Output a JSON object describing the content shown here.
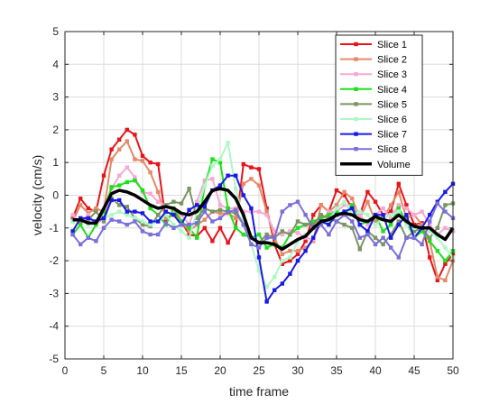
{
  "chart_data": {
    "type": "line",
    "xlabel": "time frame",
    "ylabel": "velocity (cm/s)",
    "xlim": [
      0,
      50
    ],
    "ylim": [
      -5,
      5
    ],
    "xticks": [
      0,
      5,
      10,
      15,
      20,
      25,
      30,
      35,
      40,
      45,
      50
    ],
    "yticks": [
      -5,
      -4,
      -3,
      -2,
      -1,
      0,
      1,
      2,
      3,
      4,
      5
    ],
    "grid": true,
    "legend_position": "top-right",
    "x": [
      1,
      2,
      3,
      4,
      5,
      6,
      7,
      8,
      9,
      10,
      11,
      12,
      13,
      14,
      15,
      16,
      17,
      18,
      19,
      20,
      21,
      22,
      23,
      24,
      25,
      26,
      27,
      28,
      29,
      30,
      31,
      32,
      33,
      34,
      35,
      36,
      37,
      38,
      39,
      40,
      41,
      42,
      43,
      44,
      45,
      46,
      47,
      48,
      49,
      50
    ],
    "series": [
      {
        "name": "Slice 1",
        "color": "#e8141b",
        "marker": "square",
        "line_width": 2,
        "values": [
          -0.7,
          -0.1,
          -0.4,
          -0.5,
          0.6,
          1.4,
          1.7,
          2.0,
          1.85,
          1.2,
          1.0,
          0.95,
          -0.8,
          -0.5,
          -0.8,
          -1.2,
          -1.25,
          -1.0,
          -1.4,
          -1.0,
          -1.45,
          -1.0,
          0.95,
          0.85,
          0.8,
          -0.4,
          -1.5,
          -2.1,
          -2.0,
          -1.8,
          -1.4,
          -0.6,
          -0.3,
          -0.5,
          0.15,
          0.0,
          -0.4,
          -0.6,
          0.1,
          -0.2,
          -0.6,
          -0.5,
          0.35,
          -0.3,
          -0.9,
          -0.85,
          -1.9,
          -2.6,
          -2.1,
          -1.8
        ]
      },
      {
        "name": "Slice 2",
        "color": "#e38a6a",
        "marker": "square",
        "line_width": 2,
        "values": [
          -0.8,
          -0.3,
          -0.55,
          -0.4,
          -0.5,
          1.1,
          1.4,
          1.65,
          1.1,
          1.05,
          0.7,
          0.1,
          -0.7,
          -0.6,
          -0.8,
          -1.1,
          -0.9,
          -0.75,
          -0.5,
          -0.55,
          -0.55,
          -0.7,
          0.35,
          0.5,
          0.3,
          -0.5,
          -1.3,
          -1.8,
          -1.7,
          -1.7,
          -1.6,
          -1.4,
          -0.3,
          -0.5,
          -0.3,
          0.1,
          -0.1,
          -0.7,
          -0.2,
          -0.8,
          -0.7,
          -0.3,
          0.1,
          -0.7,
          -0.6,
          -0.9,
          -1.4,
          -2.5,
          -2.6,
          -2.0
        ]
      },
      {
        "name": "Slice 3",
        "color": "#f7a8d4",
        "marker": "square",
        "line_width": 2,
        "values": [
          -0.6,
          -0.85,
          -0.6,
          -0.9,
          -0.7,
          0.2,
          0.6,
          0.85,
          0.55,
          0.1,
          0.05,
          -0.2,
          -0.3,
          -0.5,
          -0.6,
          -0.9,
          -0.2,
          0.45,
          0.5,
          -0.3,
          -0.4,
          -0.4,
          -0.5,
          -0.5,
          -0.5,
          -0.6,
          -1.1,
          -1.2,
          -1.1,
          -1.15,
          -1.3,
          -1.35,
          -0.8,
          -0.5,
          -0.5,
          -0.3,
          -0.3,
          -0.6,
          -0.9,
          -0.6,
          -0.4,
          -0.7,
          -0.3,
          -0.4,
          -0.6,
          -0.5,
          -0.9,
          -1.2,
          -1.0,
          -1.1
        ]
      },
      {
        "name": "Slice 4",
        "color": "#1ee01b",
        "marker": "square",
        "line_width": 2,
        "values": [
          -1.2,
          -0.9,
          -1.3,
          -0.9,
          -0.5,
          0.25,
          0.3,
          0.4,
          0.45,
          0.15,
          -0.4,
          -0.6,
          -0.9,
          -0.4,
          -0.8,
          -1.0,
          -1.3,
          0.3,
          1.1,
          1.0,
          -0.4,
          -1.0,
          -1.2,
          -1.3,
          -1.2,
          -1.6,
          -1.5,
          -1.6,
          -1.2,
          -1.0,
          -0.9,
          -0.8,
          -0.7,
          -0.6,
          -0.5,
          -0.6,
          -0.3,
          -0.9,
          -0.8,
          -0.6,
          -1.1,
          -0.9,
          -0.4,
          -0.8,
          -1.3,
          -1.1,
          -1.4,
          -1.7,
          -2.0,
          -1.7
        ]
      },
      {
        "name": "Slice 5",
        "color": "#7b9463",
        "marker": "square",
        "line_width": 2,
        "values": [
          -0.75,
          -0.8,
          -0.75,
          -0.5,
          -0.8,
          -0.1,
          -0.3,
          -0.35,
          -0.7,
          -0.9,
          -0.95,
          -0.6,
          -0.3,
          -0.2,
          -0.25,
          0.2,
          -0.7,
          -0.4,
          -0.5,
          -0.45,
          -0.5,
          -0.55,
          -0.9,
          -1.3,
          -1.45,
          -1.2,
          -1.3,
          -1.1,
          -1.2,
          -0.8,
          -0.9,
          -0.9,
          -0.6,
          -0.7,
          -0.8,
          -0.9,
          -1.0,
          -1.65,
          -1.1,
          -1.3,
          -1.5,
          -1.2,
          -0.8,
          -1.3,
          -1.1,
          -1.0,
          -1.3,
          -1.0,
          -0.3,
          -0.25
        ]
      },
      {
        "name": "Slice 6",
        "color": "#aef7c6",
        "marker": "square",
        "line_width": 2,
        "values": [
          -0.8,
          -0.7,
          -0.9,
          -0.8,
          -0.7,
          -0.6,
          -0.5,
          -0.6,
          -0.7,
          -0.8,
          -0.9,
          -0.8,
          -0.6,
          -0.9,
          -1.1,
          -1.3,
          -0.5,
          0.3,
          0.9,
          1.1,
          1.6,
          0.2,
          -0.8,
          -1.5,
          -2.3,
          -2.8,
          -2.5,
          -2.0,
          -1.9,
          -1.4,
          -1.2,
          -1.0,
          -0.9,
          -0.8,
          -0.4,
          -0.2,
          -0.6,
          -0.5,
          -0.6,
          -0.9,
          -0.7,
          -0.6,
          -0.5,
          -0.9,
          -1.0,
          -1.0,
          -1.1,
          -1.3,
          -1.6,
          -1.9
        ]
      },
      {
        "name": "Slice 7",
        "color": "#1a1ae6",
        "marker": "square",
        "line_width": 2,
        "values": [
          -1.1,
          -0.7,
          -0.7,
          -0.8,
          -0.7,
          -0.15,
          -0.15,
          -0.5,
          -0.5,
          -0.55,
          -0.8,
          -0.8,
          -0.5,
          -0.6,
          -0.9,
          -0.45,
          -0.3,
          -0.35,
          0.15,
          0.3,
          0.6,
          0.6,
          0.0,
          -0.4,
          -1.9,
          -3.25,
          -2.9,
          -2.7,
          -2.4,
          -2.0,
          -1.7,
          -1.3,
          -0.8,
          -0.9,
          -0.6,
          -0.5,
          -0.4,
          -0.9,
          -1.1,
          -0.6,
          -0.6,
          -1.3,
          -0.9,
          -0.6,
          -1.3,
          -1.0,
          -0.6,
          -0.2,
          0.1,
          0.35
        ]
      },
      {
        "name": "Slice 8",
        "color": "#7b6fd9",
        "marker": "square",
        "line_width": 2,
        "values": [
          -1.2,
          -1.5,
          -1.3,
          -1.4,
          -1.0,
          -0.75,
          -0.8,
          -0.9,
          -0.8,
          -1.1,
          -1.2,
          -1.2,
          -0.85,
          -1.0,
          -0.9,
          -0.9,
          -0.85,
          -0.5,
          -0.8,
          -0.7,
          -0.5,
          -0.45,
          -0.9,
          -1.5,
          -1.6,
          -1.3,
          -1.3,
          -0.5,
          -0.3,
          -0.2,
          -0.6,
          -1.0,
          -0.9,
          -1.2,
          -0.8,
          -0.6,
          -0.8,
          -1.3,
          -1.2,
          -1.5,
          -1.3,
          -1.6,
          -1.9,
          -1.3,
          -1.3,
          -1.5,
          -0.8,
          -0.25,
          -0.5,
          -0.7
        ]
      },
      {
        "name": "Volume",
        "color": "#000000",
        "marker": "none",
        "line_width": 3.5,
        "values": [
          -0.75,
          -0.75,
          -0.85,
          -0.85,
          -0.4,
          0.05,
          0.15,
          0.1,
          0.0,
          -0.15,
          -0.3,
          -0.4,
          -0.35,
          -0.4,
          -0.55,
          -0.6,
          -0.5,
          -0.2,
          0.15,
          0.2,
          0.15,
          -0.1,
          -0.6,
          -1.3,
          -1.45,
          -1.45,
          -1.5,
          -1.65,
          -1.5,
          -1.35,
          -1.25,
          -1.0,
          -0.8,
          -0.75,
          -0.6,
          -0.55,
          -0.6,
          -0.75,
          -0.8,
          -0.65,
          -0.75,
          -0.8,
          -0.6,
          -0.8,
          -0.95,
          -1.0,
          -1.0,
          -1.2,
          -1.35,
          -1.0
        ]
      }
    ]
  }
}
